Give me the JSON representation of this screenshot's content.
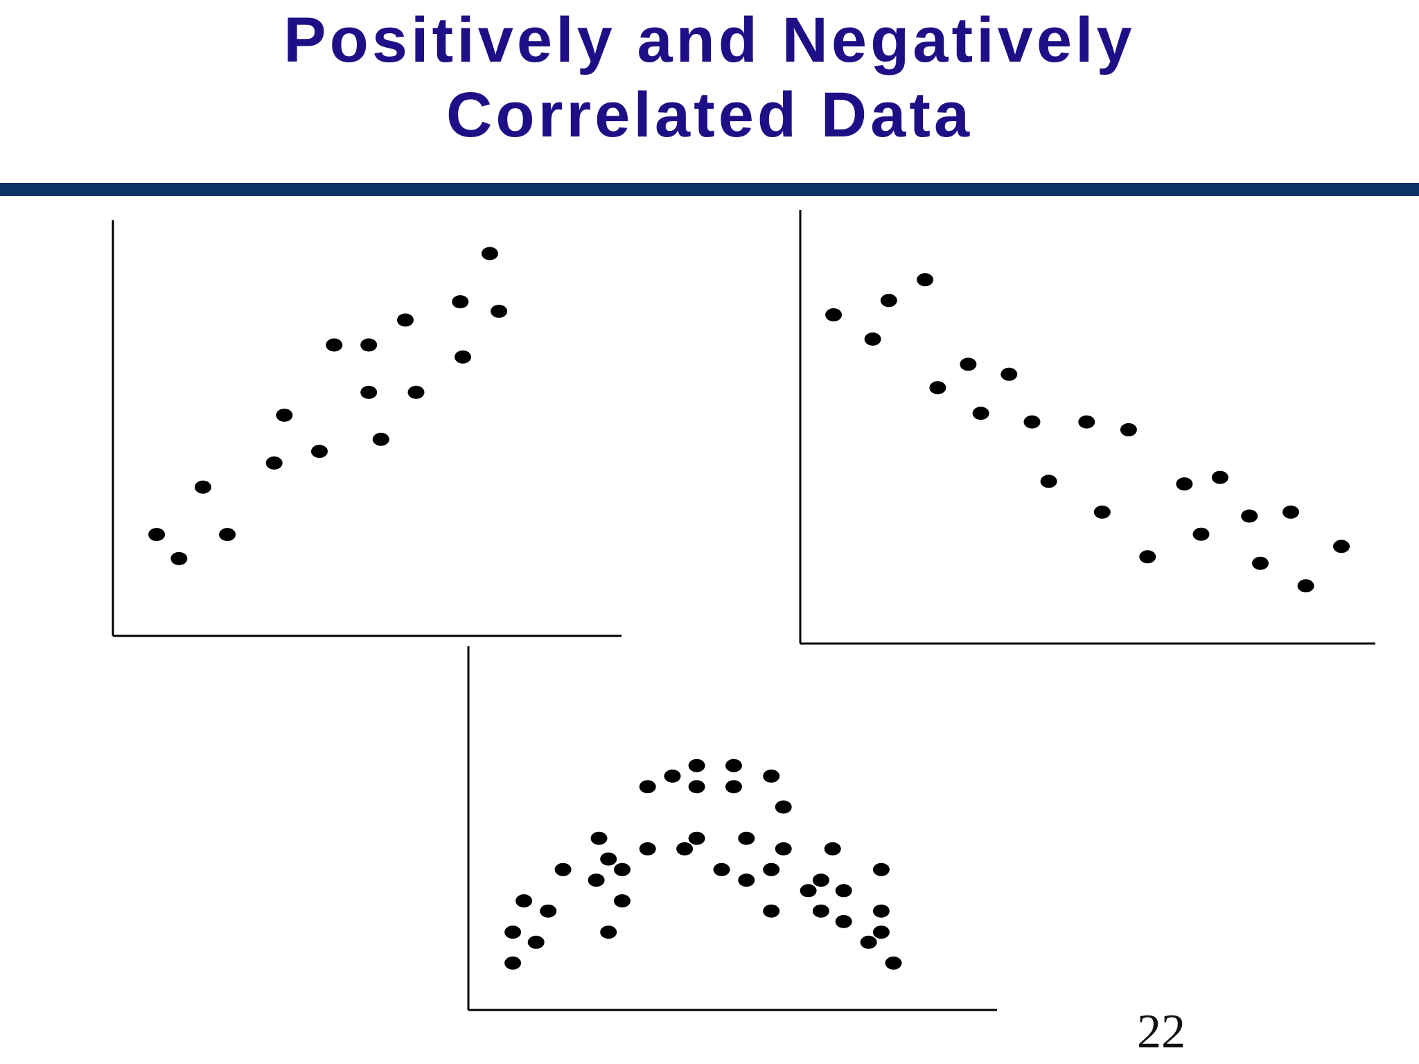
{
  "title": {
    "line1": "Positively and Negatively",
    "line2": "Correlated Data"
  },
  "page_number": "22",
  "colors": {
    "title": "#1f0f86",
    "rule": "#0b3366",
    "points": "#000000",
    "axes": "#000000"
  },
  "chart_data": [
    {
      "type": "scatter",
      "title": "",
      "xlabel": "",
      "ylabel": "",
      "xlim": [
        0,
        100
      ],
      "ylim": [
        0,
        100
      ],
      "grid": false,
      "trend": "positive",
      "points": [
        [
          8.6,
          24.4
        ],
        [
          13.0,
          18.6
        ],
        [
          17.7,
          35.8
        ],
        [
          22.5,
          24.4
        ],
        [
          31.7,
          41.6
        ],
        [
          33.7,
          53.1
        ],
        [
          40.6,
          44.4
        ],
        [
          43.5,
          70.0
        ],
        [
          50.3,
          58.6
        ],
        [
          50.3,
          70.0
        ],
        [
          52.7,
          47.3
        ],
        [
          57.5,
          76.0
        ],
        [
          59.6,
          58.6
        ],
        [
          68.3,
          80.4
        ],
        [
          68.8,
          67.1
        ],
        [
          74.1,
          92.0
        ],
        [
          75.9,
          78.1
        ]
      ]
    },
    {
      "type": "scatter",
      "title": "",
      "xlabel": "",
      "ylabel": "",
      "xlim": [
        0,
        100
      ],
      "ylim": [
        0,
        100
      ],
      "grid": false,
      "trend": "negative",
      "points": [
        [
          5.8,
          75.8
        ],
        [
          12.6,
          70.2
        ],
        [
          15.4,
          79.1
        ],
        [
          21.7,
          83.9
        ],
        [
          23.9,
          59.0
        ],
        [
          29.2,
          64.4
        ],
        [
          31.4,
          53.1
        ],
        [
          36.3,
          62.1
        ],
        [
          40.3,
          51.1
        ],
        [
          43.2,
          37.4
        ],
        [
          49.8,
          51.1
        ],
        [
          52.5,
          30.3
        ],
        [
          57.1,
          49.3
        ],
        [
          60.4,
          20.0
        ],
        [
          66.8,
          36.8
        ],
        [
          69.7,
          25.2
        ],
        [
          73.0,
          38.3
        ],
        [
          78.1,
          29.4
        ],
        [
          80.0,
          18.5
        ],
        [
          85.3,
          30.3
        ],
        [
          87.9,
          13.3
        ],
        [
          94.1,
          22.4
        ]
      ]
    },
    {
      "type": "scatter",
      "title": "",
      "xlabel": "",
      "ylabel": "",
      "xlim": [
        0,
        100
      ],
      "ylim": [
        0,
        100
      ],
      "grid": false,
      "trend": "non-linear (inverted U)",
      "points": [
        [
          8.4,
          12.9
        ],
        [
          8.4,
          21.4
        ],
        [
          10.5,
          30.0
        ],
        [
          12.8,
          18.6
        ],
        [
          15.1,
          27.2
        ],
        [
          17.9,
          38.6
        ],
        [
          24.2,
          35.7
        ],
        [
          24.7,
          47.2
        ],
        [
          26.5,
          21.4
        ],
        [
          26.5,
          41.5
        ],
        [
          29.1,
          30.0
        ],
        [
          29.1,
          38.6
        ],
        [
          33.9,
          44.3
        ],
        [
          33.9,
          61.4
        ],
        [
          38.6,
          64.3
        ],
        [
          40.9,
          44.3
        ],
        [
          43.2,
          47.2
        ],
        [
          43.2,
          61.4
        ],
        [
          43.2,
          67.2
        ],
        [
          47.9,
          38.6
        ],
        [
          50.2,
          61.4
        ],
        [
          50.2,
          67.2
        ],
        [
          52.6,
          35.7
        ],
        [
          52.6,
          47.2
        ],
        [
          57.3,
          27.2
        ],
        [
          57.3,
          38.6
        ],
        [
          57.3,
          64.3
        ],
        [
          59.6,
          44.3
        ],
        [
          59.6,
          55.8
        ],
        [
          64.3,
          32.8
        ],
        [
          66.7,
          27.2
        ],
        [
          66.7,
          35.7
        ],
        [
          68.9,
          44.3
        ],
        [
          71.0,
          32.8
        ],
        [
          71.0,
          24.3
        ],
        [
          75.7,
          18.6
        ],
        [
          78.1,
          21.4
        ],
        [
          78.1,
          27.2
        ],
        [
          78.1,
          38.6
        ],
        [
          80.4,
          12.9
        ]
      ]
    }
  ]
}
